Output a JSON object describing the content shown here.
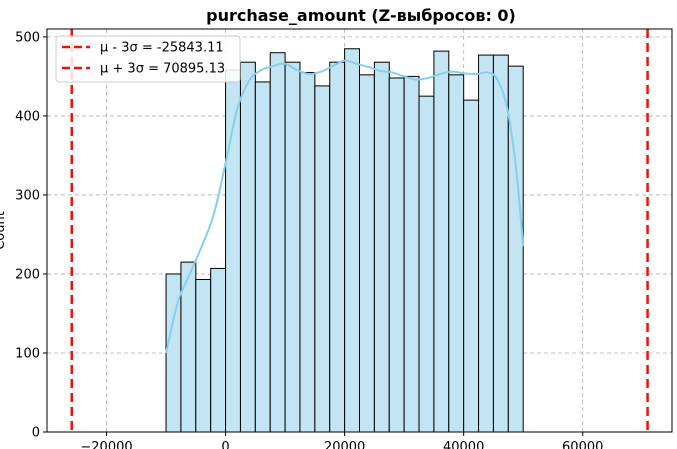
{
  "chart_data": {
    "type": "bar",
    "title": "purchase_amount (Z-выбросов: 0)",
    "xlabel": "",
    "ylabel": "Count",
    "xlim": [
      -30000,
      75000
    ],
    "ylim": [
      0,
      510
    ],
    "xticks": [
      -20000,
      0,
      20000,
      40000,
      60000
    ],
    "xtick_labels": [
      "−20000",
      "0",
      "20000",
      "40000",
      "60000"
    ],
    "yticks": [
      0,
      100,
      200,
      300,
      400,
      500
    ],
    "ytick_labels": [
      "0",
      "100",
      "200",
      "300",
      "400",
      "500"
    ],
    "grid": true,
    "legend_position": "top-left",
    "bar_color": "#c3e4f3",
    "kde_color": "#87ceeb",
    "line_color": "#e8130f",
    "bin_width": 2500,
    "bins_start": [
      -10000,
      -7500,
      -5000,
      -2500,
      0,
      2500,
      5000,
      7500,
      10000,
      12500,
      15000,
      17500,
      20000,
      22500,
      25000,
      27500,
      30000,
      32500,
      35000,
      37500,
      40000,
      42500,
      45000,
      47500
    ],
    "values": [
      200,
      215,
      193,
      207,
      458,
      468,
      443,
      480,
      468,
      455,
      438,
      468,
      485,
      452,
      468,
      448,
      450,
      425,
      482,
      452,
      420,
      477,
      477,
      463
    ],
    "kde": {
      "x": [
        -10000,
        -8000,
        -6000,
        -4000,
        -2000,
        0,
        2000,
        4000,
        6000,
        8000,
        10000,
        12000,
        14000,
        16000,
        18000,
        20000,
        22000,
        24000,
        26000,
        28000,
        30000,
        32000,
        34000,
        36000,
        38000,
        40000,
        42000,
        44000,
        45500,
        47000,
        48000,
        49000,
        50000
      ],
      "y": [
        100,
        165,
        200,
        235,
        275,
        340,
        410,
        445,
        458,
        463,
        466,
        458,
        453,
        456,
        463,
        470,
        466,
        462,
        457,
        455,
        450,
        446,
        448,
        453,
        456,
        454,
        453,
        455,
        448,
        420,
        380,
        320,
        235
      ]
    },
    "vlines": [
      {
        "x": -25843.11,
        "label": "μ - 3σ = -25843.11"
      },
      {
        "x": 70895.13,
        "label": "μ + 3σ = 70895.13"
      }
    ]
  }
}
